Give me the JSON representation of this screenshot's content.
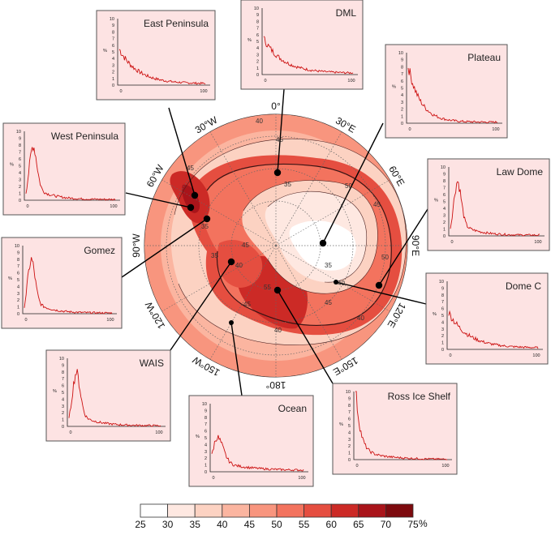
{
  "colors": {
    "levels": [
      "#ffffff",
      "#fee8e1",
      "#fcd2c2",
      "#fbb5a0",
      "#f8957e",
      "#f3735e",
      "#e54e40",
      "#cc2a26",
      "#a9141a",
      "#7d0a0e"
    ],
    "panel_fill": "#fde3e3",
    "histogram_line": "#cc1111"
  },
  "colorbar": {
    "ticks": [
      "25",
      "30",
      "35",
      "40",
      "45",
      "50",
      "55",
      "60",
      "65",
      "70",
      "75"
    ],
    "unit": "%"
  },
  "longitude_labels": [
    "0°",
    "30°E",
    "60°E",
    "90°E",
    "120°E",
    "150°E",
    "180°",
    "150°W",
    "120°W",
    "90°W",
    "60°W",
    "30°W"
  ],
  "contour_labels": [
    "40",
    "45",
    "45",
    "50",
    "35",
    "35",
    "45",
    "40",
    "35",
    "40",
    "55",
    "45",
    "45",
    "45",
    "35",
    "40",
    "40",
    "50"
  ],
  "panel_axis": {
    "y_label": "%",
    "y_ticks": [
      "0",
      "1",
      "2",
      "3",
      "4",
      "5",
      "6",
      "7",
      "8",
      "9",
      "10"
    ],
    "x_ticks": [
      "0",
      "100"
    ]
  },
  "panels": [
    {
      "title": "East Peninsula",
      "shape": "decay"
    },
    {
      "title": "DML",
      "shape": "decay"
    },
    {
      "title": "Plateau",
      "shape": "spike"
    },
    {
      "title": "West Peninsula",
      "shape": "peak"
    },
    {
      "title": "Law Dome",
      "shape": "peak"
    },
    {
      "title": "Gomez",
      "shape": "peak"
    },
    {
      "title": "Dome C",
      "shape": "decay"
    },
    {
      "title": "WAIS",
      "shape": "peak"
    },
    {
      "title": "Ocean",
      "shape": "broad"
    },
    {
      "title": "Ross Ice Shelf",
      "shape": "tall"
    }
  ]
}
